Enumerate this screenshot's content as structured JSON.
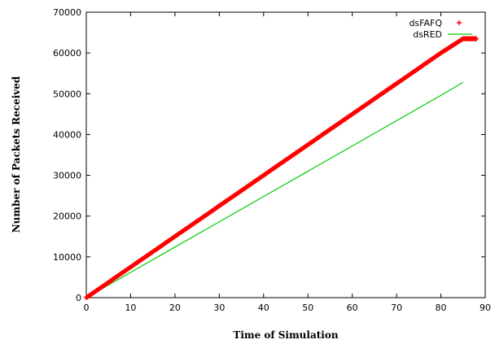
{
  "chart_data": {
    "type": "line",
    "title": "",
    "xlabel": "Time of Simulation",
    "ylabel": "Number of Packets Received",
    "xlim": [
      0,
      90
    ],
    "ylim": [
      0,
      70000
    ],
    "x_ticks": [
      "0",
      "10",
      "20",
      "30",
      "40",
      "50",
      "60",
      "70",
      "80",
      "90"
    ],
    "y_ticks": [
      "0",
      "10000",
      "20000",
      "30000",
      "40000",
      "50000",
      "60000",
      "70000"
    ],
    "grid": false,
    "legend_position": "top-right",
    "series": [
      {
        "name": "dsFAFQ",
        "color": "#ff0000",
        "marker": "plus",
        "x": [
          0,
          10,
          20,
          30,
          40,
          50,
          60,
          70,
          80,
          85,
          86,
          87,
          88
        ],
        "y": [
          0,
          7500,
          15000,
          22500,
          30000,
          37500,
          45000,
          52500,
          60000,
          63500,
          63500,
          63500,
          63500
        ]
      },
      {
        "name": "dsRED",
        "color": "#00cc00",
        "marker": "line",
        "x": [
          0,
          10,
          20,
          30,
          40,
          50,
          60,
          70,
          80,
          85
        ],
        "y": [
          0,
          6200,
          12400,
          18600,
          24800,
          31000,
          37200,
          43400,
          49600,
          52800
        ]
      }
    ]
  }
}
